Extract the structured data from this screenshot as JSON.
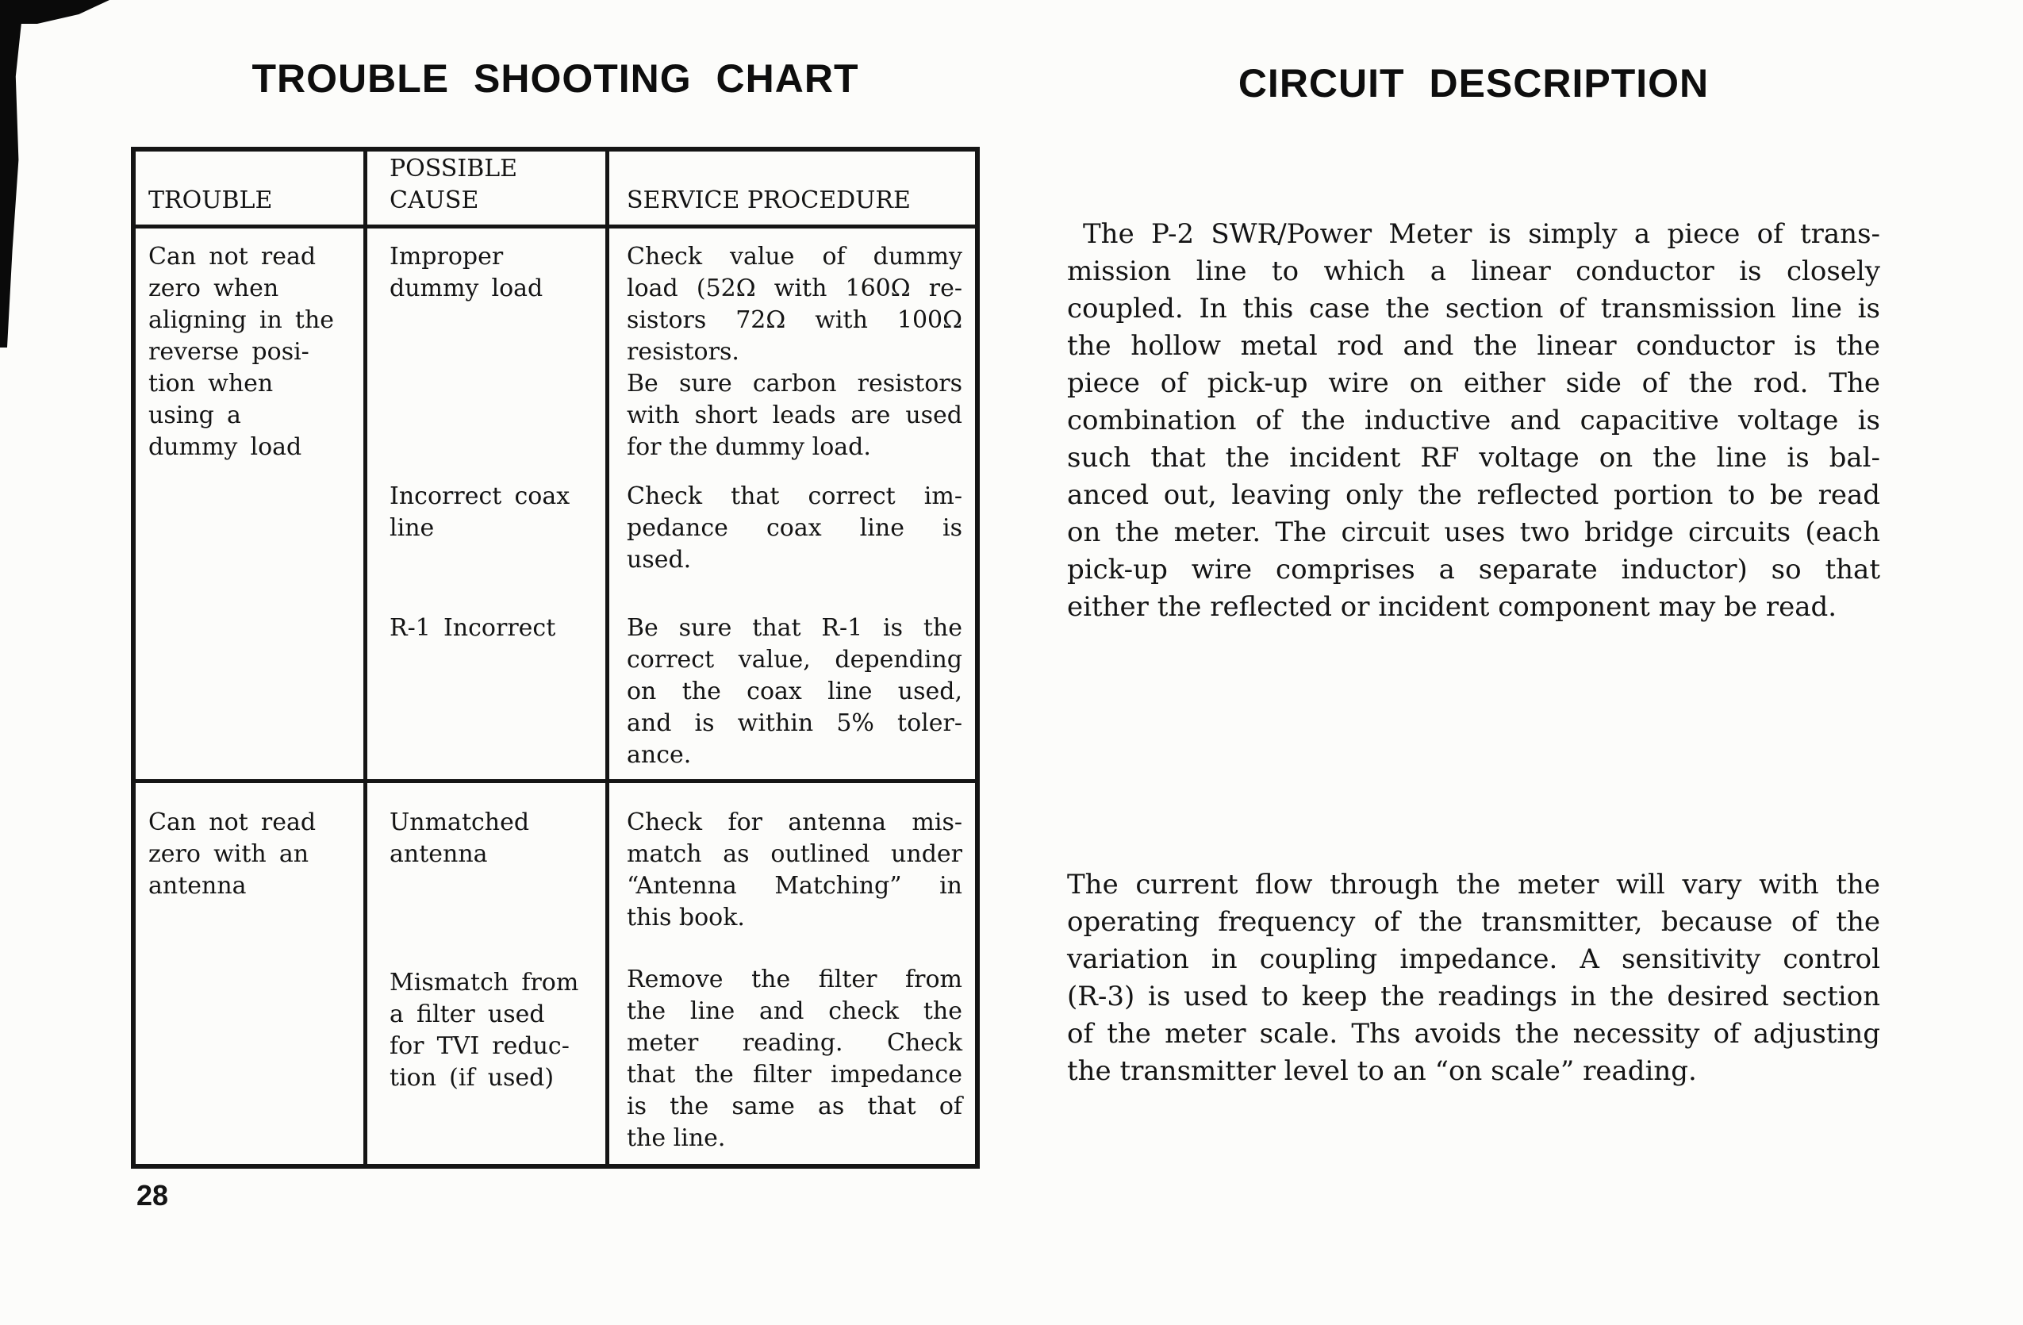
{
  "page": {
    "left_title": "TROUBLE SHOOTING CHART",
    "right_title": "CIRCUIT DESCRIPTION",
    "page_number": "28",
    "ink_color": "#141414",
    "paper_color": "#fcfcfa"
  },
  "table": {
    "headers": {
      "trouble": "TROUBLE",
      "cause_lines": [
        "POSSIBLE",
        "CAUSE"
      ],
      "procedure": "SERVICE PROCEDURE"
    },
    "rows": [
      {
        "trouble": [
          "Can not read",
          "zero when",
          "aligning in the",
          "reverse posi-",
          "tion when",
          "using a",
          "dummy load"
        ],
        "entries": [
          {
            "cause": [
              "Improper",
              "dummy load"
            ],
            "procedure": [
              "Check value of dummy",
              "load (52Ω with 160Ω re-",
              "sistors 72Ω with 100Ω",
              "resistors.",
              "Be sure carbon resistors",
              "with short leads are used",
              "for the dummy load."
            ]
          },
          {
            "cause": [
              "Incorrect coax",
              "line"
            ],
            "procedure": [
              "Check that correct im-",
              "pedance coax line is",
              "used."
            ]
          },
          {
            "cause": [
              "R-1 Incorrect"
            ],
            "procedure": [
              "Be sure that R-1 is the",
              "correct value, depending",
              "on the coax line used,",
              "and is within 5% toler-",
              "ance."
            ]
          }
        ]
      },
      {
        "trouble": [
          "Can not read",
          "zero with an",
          "antenna"
        ],
        "entries": [
          {
            "cause": [
              "Unmatched",
              "antenna"
            ],
            "procedure": [
              "Check for antenna mis-",
              "match as outlined under",
              "“Antenna Matching” in",
              "this book."
            ]
          },
          {
            "cause": [
              "Mismatch from",
              "a filter used",
              "for TVI reduc-",
              "tion (if used)"
            ],
            "procedure": [
              "Remove the filter from",
              "the line and check the",
              "meter reading.  Check",
              "that the filter impedance",
              "is the same as that of",
              "the line."
            ]
          }
        ]
      }
    ]
  },
  "circuit_description": {
    "paragraph_1": [
      "The P-2 SWR/Power Meter is simply a piece of trans-",
      "mission line to which a linear conductor is closely",
      "coupled.  In this case the section of transmission line is",
      "the hollow metal rod and the linear conductor is the",
      "piece of pick-up wire on either side of the rod.  The",
      "combination of the inductive and capacitive voltage is",
      "such that the incident RF voltage on the line is bal-",
      "anced out, leaving only the reflected portion to be read",
      "on the meter.  The circuit uses two bridge circuits (each",
      "pick-up wire comprises a separate inductor) so that",
      "either the reflected or incident component may be read."
    ],
    "paragraph_2": [
      "The current flow through the meter will vary with the",
      "operating frequency of the transmitter, because of the",
      "variation in coupling impedance.  A sensitivity control",
      "(R-3) is used to keep the readings in the desired section",
      "of the meter scale.  Ths avoids the necessity of adjusting",
      "the transmitter level to an “on scale” reading."
    ]
  }
}
